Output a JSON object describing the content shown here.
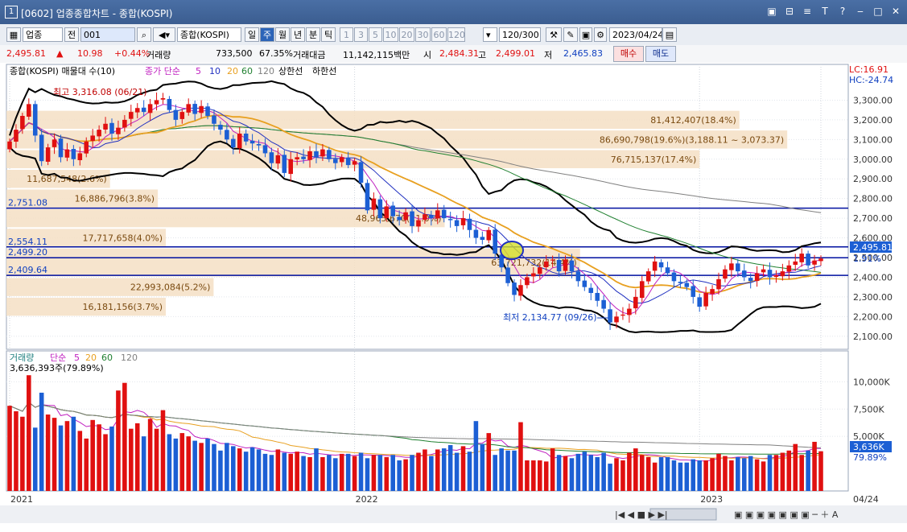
{
  "window": {
    "title": "[0602] 업종종합차트 - 종합(KOSPI)",
    "win_icon": "1",
    "controls": [
      "▣",
      "⊟",
      "≡",
      "T",
      "?",
      "‒",
      "□",
      "✕"
    ]
  },
  "toolbar": {
    "market": "업종",
    "prev": "전",
    "code": "001",
    "name": "종합(KOSPI)",
    "periods": [
      {
        "label": "일",
        "selected": false
      },
      {
        "label": "주",
        "selected": true
      },
      {
        "label": "월",
        "selected": false
      },
      {
        "label": "년",
        "selected": false
      },
      {
        "label": "분",
        "selected": false
      },
      {
        "label": "틱",
        "selected": false
      }
    ],
    "intervals": [
      "1",
      "3",
      "5",
      "10",
      "20",
      "30",
      "60",
      "120"
    ],
    "count": "120/300",
    "date": "2023/04/24"
  },
  "quote": {
    "price": "2,495.81",
    "change": "10.98",
    "change_pct": "+0.44%",
    "volume_label": "거래량",
    "volume": "733,500",
    "volume_ratio": "67.35%",
    "amount_label": "거래대금",
    "amount": "11,142,115백만",
    "open_label": "시",
    "open": "2,484.31",
    "high_label": "고",
    "high": "2,499.01",
    "low_label": "저",
    "low": "2,465.83",
    "buy": "매수",
    "sell": "매도"
  },
  "colors": {
    "up": "#e01010",
    "down": "#1c5fd4",
    "band": "#000000",
    "ma5": "#c020c0",
    "ma10": "#2030c0",
    "ma20": "#e8a020",
    "ma60": "#208030",
    "ma120": "#808080",
    "hline": "#0010a0",
    "volbar": "#f5dfc4"
  },
  "chart_data": [
    {
      "type": "candlestick",
      "title": "종합(KOSPI) 매물대 수(10)",
      "legend": [
        "종가 단순",
        "5",
        "10",
        "20",
        "60",
        "120",
        "상한선",
        "하한선"
      ],
      "lc": "LC:16.91",
      "hc": "HC:-24.74",
      "ylim": [
        2050,
        3400
      ],
      "y_ticks": [
        "3,300.00",
        "3,200.00",
        "3,100.00",
        "3,000.00",
        "2,900.00",
        "2,800.00",
        "2,700.00",
        "2,600.00",
        "2,500.00",
        "2,400.00",
        "2,300.00",
        "2,200.00",
        "2,100.00"
      ],
      "y_tick_values": [
        3300,
        3200,
        3100,
        3000,
        2900,
        2800,
        2700,
        2600,
        2500,
        2400,
        2300,
        2200,
        2100
      ],
      "x_labels": [
        "2021",
        "2022",
        "2023",
        "04/24"
      ],
      "x_label_index": [
        0,
        54,
        108,
        127
      ],
      "current_price_label": "2,495.81",
      "current_price": 2495.81,
      "current_change_label": "1.91%",
      "annotations": {
        "high": {
          "text": "최고 3,316.08 (06/21)",
          "value": 3316.08
        },
        "low": {
          "text": "최저 2,134.77 (09/26)",
          "value": 2134.77
        }
      },
      "hlines": [
        {
          "label": "2,751.08",
          "value": 2751.08
        },
        {
          "label": "2,554.11",
          "value": 2554.11
        },
        {
          "label": "2,499.20",
          "value": 2499.2
        },
        {
          "label": "2,409.64",
          "value": 2409.64
        }
      ],
      "volume_profile": [
        {
          "low": 3150,
          "high": 3250,
          "label": "81,412,407(18.4%)",
          "frac": 0.92
        },
        {
          "low": 3050,
          "high": 3150,
          "label": "86,690,798(19.6%)(3,188.11 ~ 3,073.37)",
          "frac": 0.98
        },
        {
          "low": 2950,
          "high": 3050,
          "label": "76,715,137(17.4%)",
          "frac": 0.87
        },
        {
          "low": 2850,
          "high": 2950,
          "label": "11,687,548(2.6%)",
          "frac": 0.13
        },
        {
          "low": 2750,
          "high": 2850,
          "label": "16,886,796(3.8%)",
          "frac": 0.19
        },
        {
          "low": 2650,
          "high": 2750,
          "label": "48,965,670(11.0%)",
          "frac": 0.55
        },
        {
          "low": 2550,
          "high": 2650,
          "label": "17,717,658(4.0%)",
          "frac": 0.2
        },
        {
          "low": 2400,
          "high": 2550,
          "label": "63,721,732(14.4%)",
          "frac": 0.72
        },
        {
          "low": 2300,
          "high": 2400,
          "label": "22,993,084(5.2%)",
          "frac": 0.26
        },
        {
          "low": 2200,
          "high": 2300,
          "label": "16,181,156(3.7%)",
          "frac": 0.2
        }
      ],
      "closes": [
        3090,
        3150,
        3220,
        3280,
        3120,
        2990,
        3060,
        3100,
        3010,
        3050,
        3000,
        3030,
        3090,
        3120,
        3150,
        3180,
        3130,
        3160,
        3200,
        3240,
        3260,
        3240,
        3280,
        3300,
        3310,
        3250,
        3200,
        3240,
        3280,
        3230,
        3270,
        3220,
        3180,
        3150,
        3100,
        3060,
        3130,
        3090,
        3080,
        3070,
        3030,
        2980,
        3020,
        2930,
        3000,
        3010,
        3000,
        3040,
        3010,
        3050,
        3000,
        2980,
        3010,
        2970,
        2990,
        2880,
        2740,
        2800,
        2700,
        2760,
        2710,
        2690,
        2730,
        2660,
        2690,
        2720,
        2700,
        2740,
        2700,
        2690,
        2660,
        2700,
        2640,
        2600,
        2590,
        2640,
        2520,
        2450,
        2370,
        2310,
        2360,
        2400,
        2420,
        2450,
        2480,
        2490,
        2430,
        2490,
        2430,
        2380,
        2350,
        2320,
        2280,
        2240,
        2170,
        2200,
        2210,
        2240,
        2300,
        2380,
        2430,
        2480,
        2450,
        2420,
        2380,
        2370,
        2350,
        2300,
        2250,
        2320,
        2340,
        2390,
        2440,
        2470,
        2430,
        2400,
        2380,
        2420,
        2440,
        2400,
        2410,
        2430,
        2460,
        2480,
        2520,
        2460,
        2485,
        2495
      ],
      "volume_title": "거래량",
      "volume_legend": [
        "단순",
        "5",
        "20",
        "60",
        "120"
      ],
      "volume_label": "3,636,393주(79.89%)",
      "volume_ticks": [
        "10,000K",
        "7,500K",
        "5,000K"
      ],
      "volume_tick_values": [
        10000,
        7500,
        5000
      ],
      "volume_ylim": [
        0,
        11500
      ],
      "current_volume_label": "3,636K",
      "current_volume_pct": "79.89%",
      "volumes": [
        7800,
        7300,
        6800,
        10600,
        5800,
        9000,
        7000,
        6700,
        6000,
        6400,
        6800,
        5500,
        4800,
        6500,
        6100,
        5200,
        5900,
        9200,
        9900,
        5700,
        6200,
        5000,
        6600,
        5700,
        7400,
        5200,
        4800,
        5300,
        5000,
        4600,
        4400,
        4800,
        4300,
        3700,
        4400,
        4100,
        3900,
        3600,
        4000,
        3800,
        3400,
        3300,
        3800,
        3500,
        3400,
        3600,
        3200,
        3100,
        3900,
        3100,
        3300,
        3000,
        3400,
        3400,
        3200,
        3500,
        3000,
        3300,
        3300,
        3100,
        3300,
        2800,
        2900,
        3300,
        3500,
        3800,
        3200,
        3800,
        3900,
        4200,
        3500,
        4100,
        3600,
        6400,
        4300,
        5300,
        3300,
        3900,
        3700,
        3700,
        6300,
        2800,
        2800,
        2800,
        2700,
        3900,
        3300,
        3200,
        3000,
        3400,
        3600,
        3300,
        3100,
        3500,
        2500,
        3000,
        2800,
        3500,
        3900,
        3300,
        3100,
        2600,
        3100,
        3100,
        2800,
        2600,
        2600,
        2900,
        2800,
        2800,
        3000,
        3400,
        3200,
        2800,
        3100,
        3000,
        3200,
        2900,
        2700,
        3300,
        3300,
        3500,
        3700,
        4300,
        3300,
        3700,
        4500,
        3636
      ]
    }
  ]
}
